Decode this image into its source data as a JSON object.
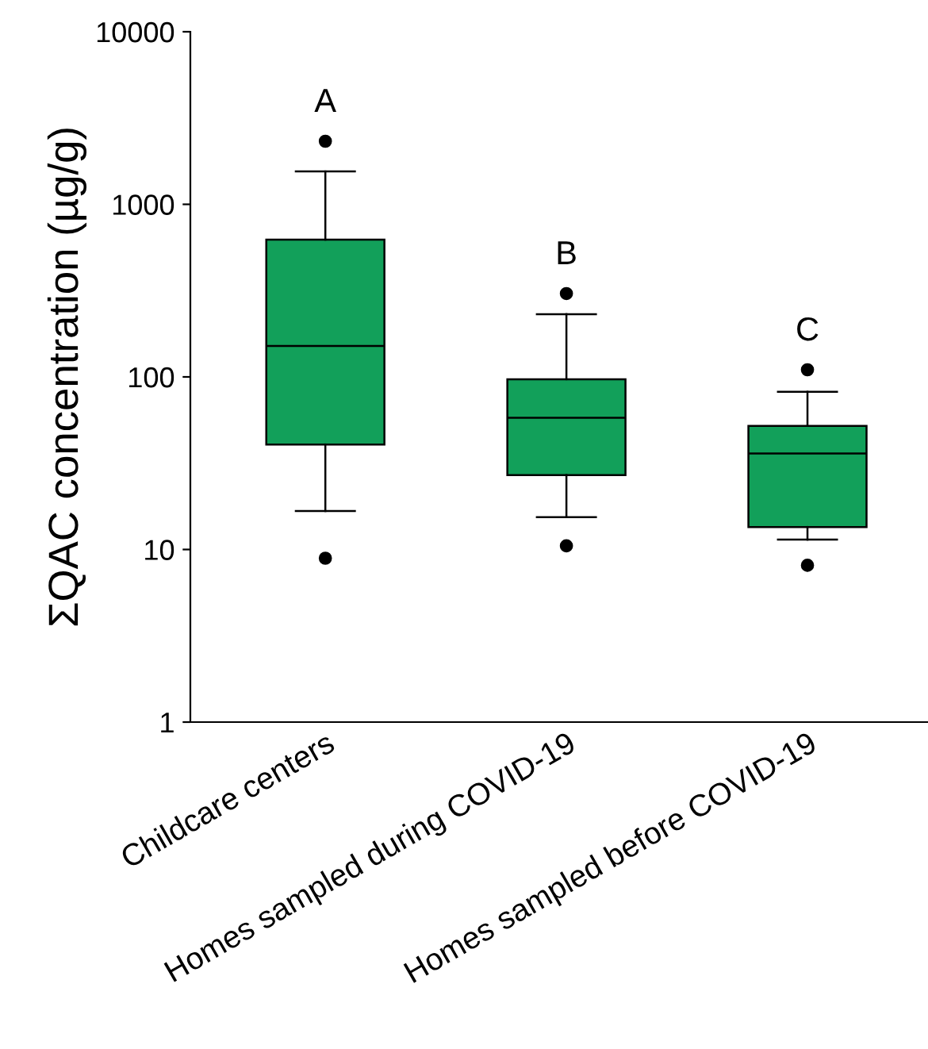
{
  "chart_data": {
    "type": "box",
    "ylabel": "ΣQAC concentration (µg/g)",
    "categories": [
      "Childcare centers",
      "Homes sampled during COVID-19",
      "Homes sampled before COVID-19"
    ],
    "boxes": [
      {
        "low": 16.7,
        "q1": 40.6,
        "median": 151,
        "q3": 624,
        "high": 1550,
        "outliers": [
          2320,
          8.9
        ]
      },
      {
        "low": 15.4,
        "q1": 27,
        "median": 58,
        "q3": 97,
        "high": 231,
        "outliers": [
          304,
          10.5
        ]
      },
      {
        "low": 11.4,
        "q1": 13.5,
        "median": 36,
        "q3": 52,
        "high": 82,
        "outliers": [
          110,
          8.1
        ]
      }
    ],
    "color": "#12a05a",
    "log": true,
    "ylim": [
      1,
      10000
    ],
    "yticks": [
      1,
      10,
      100,
      1000,
      10000
    ],
    "grid": false,
    "legend": false,
    "annotations": [
      "A",
      "B",
      "C"
    ]
  }
}
